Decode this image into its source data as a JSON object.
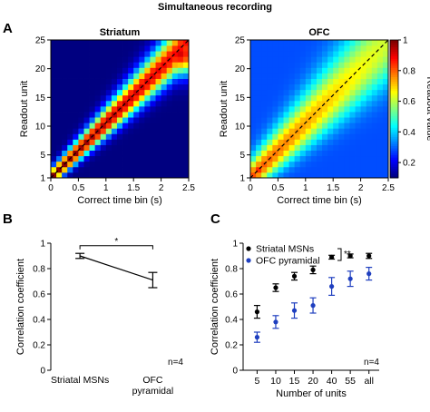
{
  "figure_title": "Simultaneous recording",
  "colors": {
    "colormap": [
      "#000080",
      "#0000ff",
      "#0080ff",
      "#00ffff",
      "#80ff80",
      "#ffff00",
      "#ff8000",
      "#ff0000",
      "#800000"
    ],
    "striatal": "#000000",
    "ofc": "#1f3fbf",
    "axis": "#000000",
    "diagonal": "#000000"
  },
  "panels": [
    {
      "letter": "A"
    },
    {
      "letter": "B"
    },
    {
      "letter": "C"
    }
  ],
  "chart_data": [
    {
      "type": "heatmap",
      "panel": "A",
      "title": "Striatum",
      "xlabel": "Correct time bin (s)",
      "ylabel": "Readout unit",
      "xlim": [
        0,
        2.5
      ],
      "ylim": [
        1,
        25
      ],
      "x_ticks": [
        "0",
        "0.5",
        "1",
        "1.5",
        "2",
        "2.5"
      ],
      "y_ticks": [
        "1",
        "5",
        "10",
        "15",
        "20",
        "25"
      ],
      "grid_size": 25,
      "diagonal_dashed": true,
      "model": {
        "peak": 1.0,
        "peak_end": 0.88,
        "width_start": 1.0,
        "width_end": 3.2,
        "baseline": 0.1,
        "start_blob": {
          "x": 1,
          "y": 1,
          "value": 0.78
        },
        "end_blob": {
          "x": 24,
          "y": 23,
          "value": 0.92,
          "spread": 2.6
        }
      }
    },
    {
      "type": "heatmap",
      "panel": "A",
      "title": "OFC",
      "xlabel": "Correct time bin (s)",
      "ylabel": "Readout unit",
      "xlim": [
        0,
        2.5
      ],
      "ylim": [
        1,
        25
      ],
      "x_ticks": [
        "0",
        "0.5",
        "1",
        "1.5",
        "2",
        "2.5"
      ],
      "y_ticks": [
        "1",
        "5",
        "10",
        "15",
        "20",
        "25"
      ],
      "grid_size": 25,
      "diagonal_dashed": true,
      "colorbar": {
        "label": "Readout value",
        "ticks": [
          "0.2",
          "0.4",
          "0.6",
          "0.8",
          "1"
        ],
        "range": [
          0.1,
          1.0
        ]
      },
      "model": {
        "peak": 0.82,
        "peak_end": 0.62,
        "width_start": 2.0,
        "width_end": 5.5,
        "baseline": 0.28,
        "start_blob": {
          "x": 2,
          "y": 2,
          "value": 0.85
        },
        "end_blob": {
          "x": 24,
          "y": 23,
          "value": 0.55,
          "spread": 4.0
        }
      }
    },
    {
      "type": "line",
      "panel": "B",
      "categories": [
        "Striatal MSNs",
        "OFC\npyramidal"
      ],
      "values": [
        0.9,
        0.71
      ],
      "errors": [
        0.02,
        0.06
      ],
      "ylabel": "Correlation coefficient",
      "ylim": [
        0,
        1
      ],
      "y_ticks": [
        "0",
        "0.2",
        "0.4",
        "0.6",
        "0.8",
        "1"
      ],
      "significance": "*",
      "n_label": "n=4"
    },
    {
      "type": "scatter",
      "panel": "C",
      "categories": [
        "5",
        "10",
        "15",
        "20",
        "40",
        "55",
        "all"
      ],
      "xlabel": "Number of units",
      "ylabel": "Correlation coefficient",
      "ylim": [
        0,
        1
      ],
      "y_ticks": [
        "0",
        "0.2",
        "0.4",
        "0.6",
        "0.8",
        "1"
      ],
      "series": [
        {
          "name": "Striatal MSNs",
          "values": [
            0.46,
            0.65,
            0.74,
            0.79,
            0.89,
            0.9,
            0.9
          ],
          "errors": [
            0.05,
            0.03,
            0.03,
            0.03,
            0.015,
            0.015,
            0.02
          ]
        },
        {
          "name": "OFC pyramidal",
          "values": [
            0.26,
            0.38,
            0.47,
            0.51,
            0.66,
            0.72,
            0.76
          ],
          "errors": [
            0.04,
            0.05,
            0.06,
            0.06,
            0.07,
            0.06,
            0.05
          ]
        }
      ],
      "significance": "**",
      "n_label": "n=4"
    }
  ]
}
